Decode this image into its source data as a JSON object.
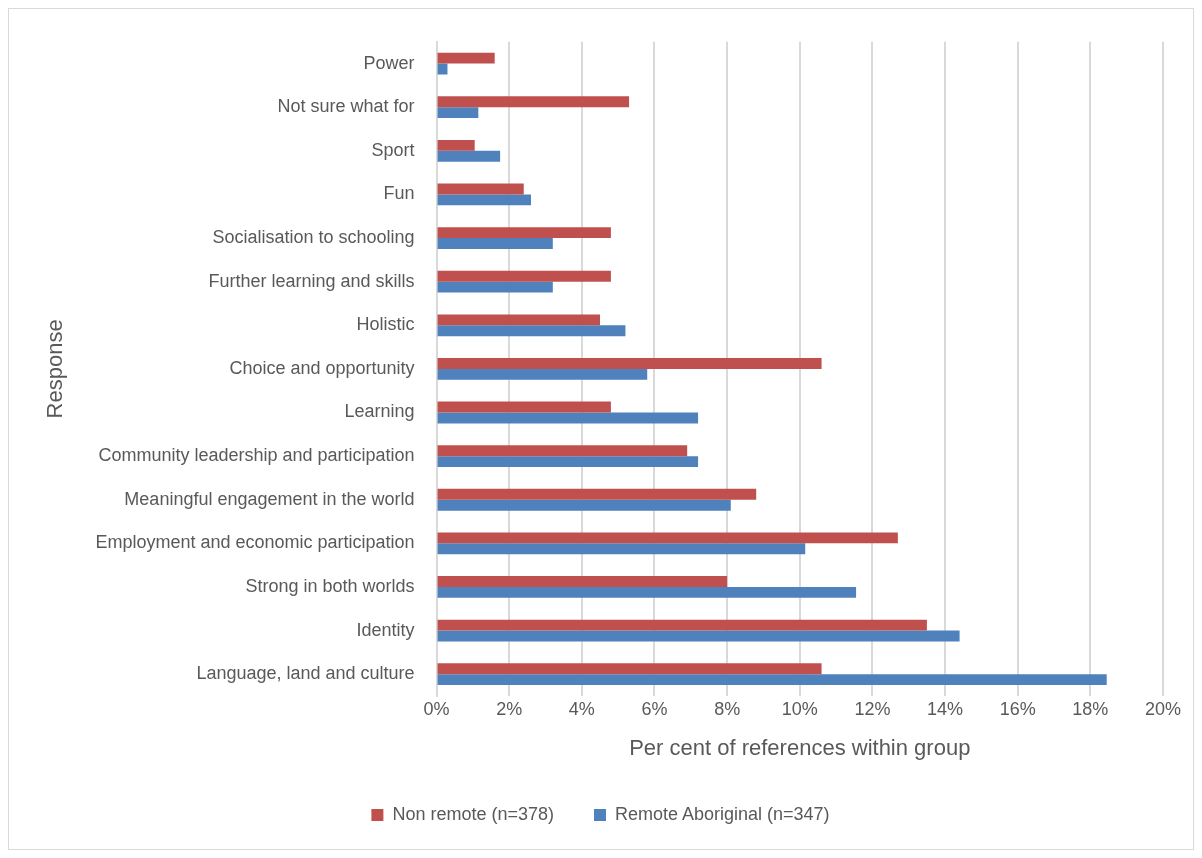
{
  "chart_data": {
    "type": "bar",
    "orientation": "horizontal",
    "xlabel": "Per cent of references within group",
    "ylabel": "Response",
    "categories": [
      "Power",
      "Not sure what for",
      "Sport",
      "Fun",
      "Socialisation to schooling",
      "Further learning and skills",
      "Holistic",
      "Choice and opportunity",
      "Learning",
      "Community leadership and participation",
      "Meaningful engagement in the world",
      "Employment and economic participation",
      "Strong in both worlds",
      "Identity",
      "Language, land and culture"
    ],
    "series": [
      {
        "name": "Non remote (n=378)",
        "color": "#c0504d",
        "values": [
          1.6,
          5.3,
          1.05,
          2.4,
          4.8,
          4.8,
          4.5,
          10.6,
          4.8,
          6.9,
          8.8,
          12.7,
          8.0,
          13.5,
          10.6
        ]
      },
      {
        "name": "Remote Aboriginal (n=347)",
        "color": "#4f81bd",
        "values": [
          0.3,
          1.15,
          1.75,
          2.6,
          3.2,
          3.2,
          5.2,
          5.8,
          7.2,
          7.2,
          8.1,
          10.15,
          11.55,
          14.4,
          18.45
        ]
      }
    ],
    "xlim": [
      0,
      20
    ],
    "xticks": [
      {
        "value": 0,
        "label": "0%"
      },
      {
        "value": 2,
        "label": "2%"
      },
      {
        "value": 4,
        "label": "4%"
      },
      {
        "value": 6,
        "label": "6%"
      },
      {
        "value": 8,
        "label": "8%"
      },
      {
        "value": 10,
        "label": "10%"
      },
      {
        "value": 12,
        "label": "12%"
      },
      {
        "value": 14,
        "label": "14%"
      },
      {
        "value": 16,
        "label": "16%"
      },
      {
        "value": 18,
        "label": "18%"
      },
      {
        "value": 20,
        "label": "20%"
      }
    ],
    "grid": "x",
    "legend": "bottom"
  }
}
